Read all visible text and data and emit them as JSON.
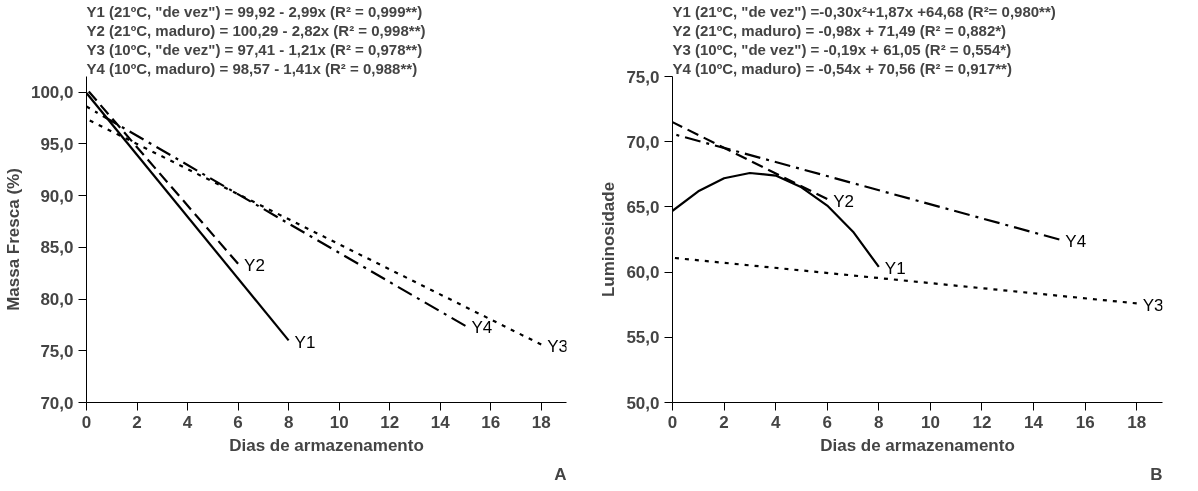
{
  "chart_data": [
    {
      "type": "line",
      "xlabel": "Dias de armazenamento",
      "ylabel": "Massa Fresca (%)",
      "annotations": [
        "Y1 (21ºC, \"de vez\") = 99,92 - 2,99x (R² = 0,999**)",
        "Y2 (21ºC, maduro) = 100,29 - 2,82x (R² = 0,998**)",
        "Y3 (10ºC, \"de vez\") = 97,41 - 1,21x (R² = 0,978**)",
        "Y4 (10ºC, maduro) = 98,57 - 1,41x (R² = 0,988**)",
        "A"
      ],
      "xlim": [
        0,
        19
      ],
      "ylim": [
        70,
        101.5
      ],
      "xticks": [
        0,
        2,
        4,
        6,
        8,
        10,
        12,
        14,
        16,
        18
      ],
      "yticks": [
        {
          "value": 70,
          "label": "70,0"
        },
        {
          "value": 75,
          "label": "75,0"
        },
        {
          "value": 80,
          "label": "80,0"
        },
        {
          "value": 85,
          "label": "85,0"
        },
        {
          "value": 90,
          "label": "90,0"
        },
        {
          "value": 95,
          "label": "95,0"
        },
        {
          "value": 100,
          "label": "100,0"
        }
      ],
      "grid": false,
      "series": [
        {
          "name": "Y1",
          "color": "#000000",
          "line_style": "solid",
          "x": [
            0,
            8
          ],
          "values": [
            99.9,
            76.0
          ]
        },
        {
          "name": "Y2",
          "color": "#000000",
          "line_style": "dashed",
          "x": [
            0,
            6
          ],
          "values": [
            100.3,
            83.4
          ]
        },
        {
          "name": "Y3",
          "color": "#000000",
          "line_style": "dotted",
          "x": [
            0,
            18
          ],
          "values": [
            97.4,
            75.6
          ]
        },
        {
          "name": "Y4",
          "color": "#000000",
          "line_style": "dashdot",
          "x": [
            0,
            15
          ],
          "values": [
            98.6,
            77.4
          ]
        }
      ]
    },
    {
      "type": "line",
      "xlabel": "Dias de armazenamento",
      "ylabel": "Luminosidade",
      "annotations": [
        "Y1 (21ºC, \"de vez\") =-0,30x²+1,87x +64,68 (R²= 0,980**)",
        "Y2 (21ºC, maduro) = -0,98x + 71,49 (R² = 0,882*)",
        "Y3 (10ºC, \"de vez\") = -0,19x + 61,05 (R² = 0,554*)",
        "Y4 (10ºC, maduro) = -0,54x + 70,56  (R² = 0,917**)",
        "B"
      ],
      "xlim": [
        0,
        19
      ],
      "ylim": [
        50,
        75
      ],
      "xticks": [
        0,
        2,
        4,
        6,
        8,
        10,
        12,
        14,
        16,
        18
      ],
      "yticks": [
        {
          "value": 50,
          "label": "50,0"
        },
        {
          "value": 55,
          "label": "55,0"
        },
        {
          "value": 60,
          "label": "60,0"
        },
        {
          "value": 65,
          "label": "65,0"
        },
        {
          "value": 70,
          "label": "70,0"
        },
        {
          "value": 75,
          "label": "75,0"
        }
      ],
      "grid": false,
      "series": [
        {
          "name": "Y1",
          "color": "#000000",
          "line_style": "solid",
          "x": [
            0,
            1,
            2,
            3,
            4,
            5,
            6,
            7,
            8
          ],
          "values": [
            64.7,
            66.2,
            67.2,
            67.6,
            67.4,
            66.5,
            65.1,
            63.1,
            60.4
          ]
        },
        {
          "name": "Y2",
          "color": "#000000",
          "line_style": "dashed",
          "x": [
            0,
            6
          ],
          "values": [
            71.5,
            65.6
          ]
        },
        {
          "name": "Y3",
          "color": "#000000",
          "line_style": "dotted",
          "x": [
            0,
            18
          ],
          "values": [
            61.1,
            57.6
          ]
        },
        {
          "name": "Y4",
          "color": "#000000",
          "line_style": "dashdot",
          "x": [
            0,
            15
          ],
          "values": [
            70.6,
            62.5
          ]
        }
      ]
    }
  ]
}
